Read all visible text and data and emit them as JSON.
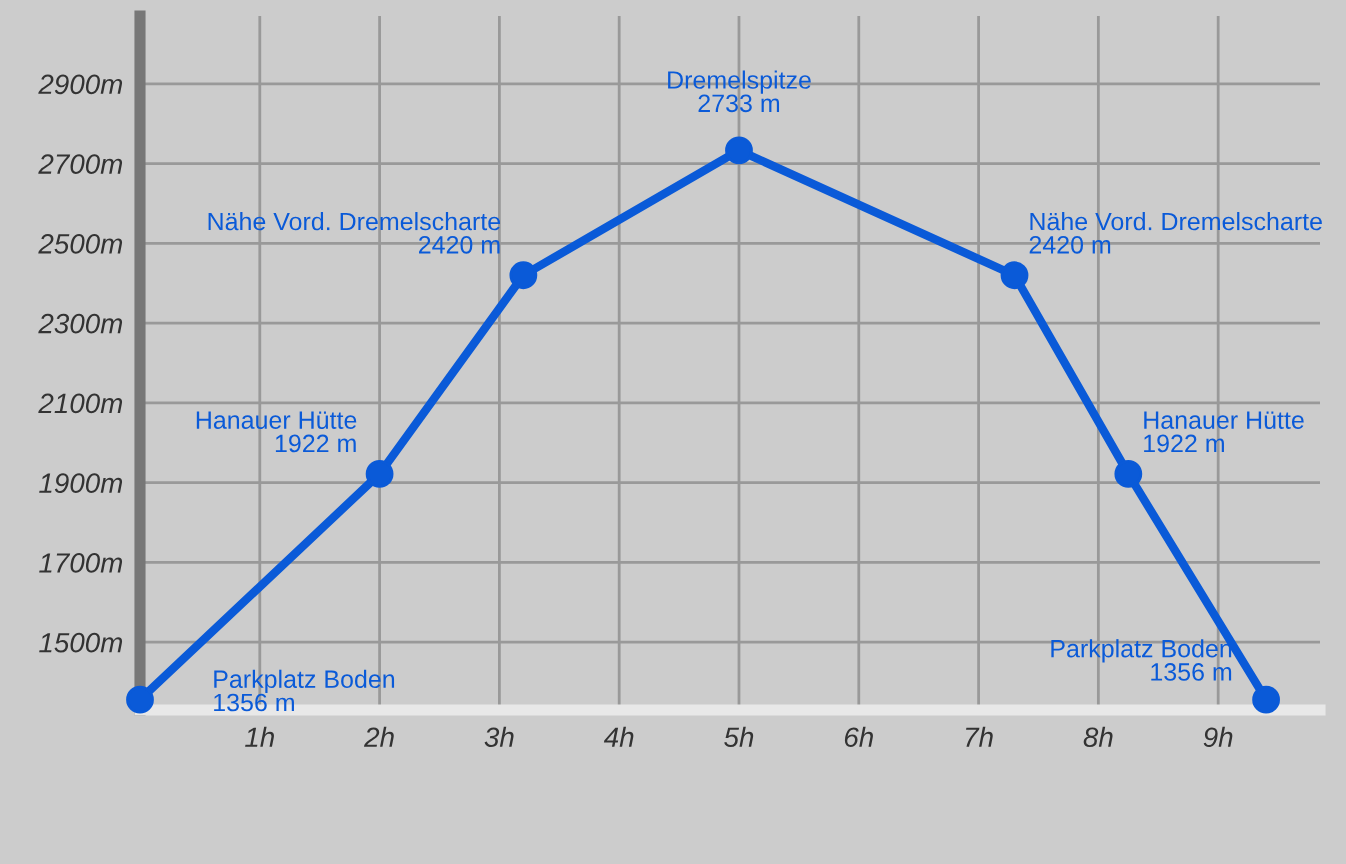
{
  "chart_data": {
    "type": "line",
    "x": [
      0,
      2.0,
      3.2,
      5.0,
      7.3,
      8.25,
      9.4
    ],
    "series": [
      {
        "color": "#0a5ad8",
        "values": [
          1356,
          1922,
          2420,
          2733,
          2420,
          1922,
          1356
        ]
      }
    ],
    "marker": "circle",
    "line_style": "solid",
    "grid": true,
    "xlim": [
      0,
      9.85
    ],
    "xticks": [
      {
        "value": 1,
        "label": "1h"
      },
      {
        "value": 2,
        "label": "2h"
      },
      {
        "value": 3,
        "label": "3h"
      },
      {
        "value": 4,
        "label": "4h"
      },
      {
        "value": 5,
        "label": "5h"
      },
      {
        "value": 6,
        "label": "6h"
      },
      {
        "value": 7,
        "label": "7h"
      },
      {
        "value": 8,
        "label": "8h"
      },
      {
        "value": 9,
        "label": "9h"
      }
    ],
    "ylim": [
      1330,
      3070
    ],
    "yticks": [
      {
        "value": 1500,
        "label": "1500m"
      },
      {
        "value": 1700,
        "label": "1700m"
      },
      {
        "value": 1900,
        "label": "1900m"
      },
      {
        "value": 2100,
        "label": "2100m"
      },
      {
        "value": 2300,
        "label": "2300m"
      },
      {
        "value": 2500,
        "label": "2500m"
      },
      {
        "value": 2700,
        "label": "2700m"
      },
      {
        "value": 2900,
        "label": "2900m"
      }
    ],
    "annotations": [
      {
        "text": "Parkplatz Boden\n1356 m",
        "x": 0,
        "y": 1356
      },
      {
        "text": "Hanauer Hütte\n1922 m",
        "x": 2.0,
        "y": 1922
      },
      {
        "text": "Nähe Vord. Dremelscharte\n2420 m",
        "x": 3.2,
        "y": 2420
      },
      {
        "text": "Dremelspitze\n2733 m",
        "x": 5.0,
        "y": 2733
      },
      {
        "text": "Nähe Vord. Dremelscharte\n2420 m",
        "x": 7.3,
        "y": 2420
      },
      {
        "text": "Hanauer Hütte\n1922 m",
        "x": 8.25,
        "y": 1922
      },
      {
        "text": "Parkplatz Boden\n1356 m",
        "x": 9.4,
        "y": 1356
      }
    ]
  }
}
